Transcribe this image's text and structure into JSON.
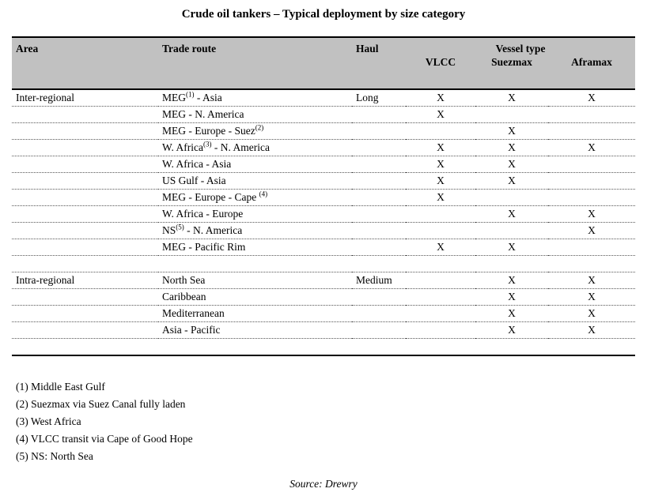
{
  "title": "Crude oil tankers – Typical deployment by size category",
  "colors": {
    "header_bg": "#c1c1c1"
  },
  "table": {
    "headers": {
      "area": "Area",
      "trade_route": "Trade route",
      "haul": "Haul",
      "vessel_type": "Vessel type",
      "vlcc": "VLCC",
      "suezmax": "Suezmax",
      "aframax": "Aframax"
    },
    "rows": [
      {
        "area": "Inter-regional",
        "route_pre": "MEG",
        "route_sup": "(1)",
        "route_post": " - Asia",
        "haul": "Long",
        "vlcc": "X",
        "suezmax": "X",
        "aframax": "X"
      },
      {
        "route_pre": "MEG - N. America",
        "vlcc": "X"
      },
      {
        "route_pre": "MEG - Europe - Suez",
        "route_sup": "(2)",
        "suezmax": "X"
      },
      {
        "route_pre": "W. Africa",
        "route_sup": "(3)",
        "route_post": " - N. America",
        "vlcc": "X",
        "suezmax": "X",
        "aframax": "X"
      },
      {
        "route_pre": "W. Africa - Asia",
        "vlcc": "X",
        "suezmax": "X"
      },
      {
        "route_pre": "US Gulf - Asia",
        "vlcc": "X",
        "suezmax": "X"
      },
      {
        "route_pre": "MEG - Europe - Cape ",
        "route_sup": "(4)",
        "vlcc": "X"
      },
      {
        "route_pre": "W. Africa - Europe",
        "suezmax": "X",
        "aframax": "X"
      },
      {
        "route_pre": "NS",
        "route_sup": "(5)",
        "route_post": " - N. America",
        "aframax": "X"
      },
      {
        "route_pre": "MEG - Pacific Rim",
        "vlcc": "X",
        "suezmax": "X"
      },
      {
        "area": "Intra-regional",
        "route_pre": "North Sea",
        "haul": "Medium",
        "suezmax": "X",
        "aframax": "X"
      },
      {
        "route_pre": "Caribbean",
        "suezmax": "X",
        "aframax": "X"
      },
      {
        "route_pre": "Mediterranean",
        "suezmax": "X",
        "aframax": "X"
      },
      {
        "route_pre": "Asia - Pacific",
        "suezmax": "X",
        "aframax": "X"
      }
    ]
  },
  "footnotes": [
    "(1) Middle East Gulf",
    "(2) Suezmax via Suez Canal fully laden",
    "(3) West Africa",
    "(4) VLCC transit via Cape of Good Hope",
    "(5) NS: North Sea"
  ],
  "source": "Source: Drewry"
}
